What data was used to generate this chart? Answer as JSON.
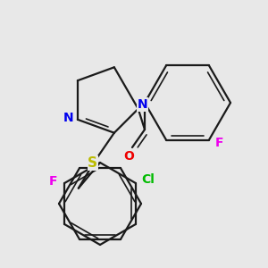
{
  "background_color": "#e8e8e8",
  "bond_color": "#1a1a1a",
  "atom_colors": {
    "N": "#0000ee",
    "O": "#ee0000",
    "S": "#bbbb00",
    "F": "#ee00ee",
    "Cl": "#00bb00"
  },
  "figsize": [
    3.0,
    3.0
  ],
  "dpi": 100,
  "lw": 1.6,
  "lw2": 1.2
}
